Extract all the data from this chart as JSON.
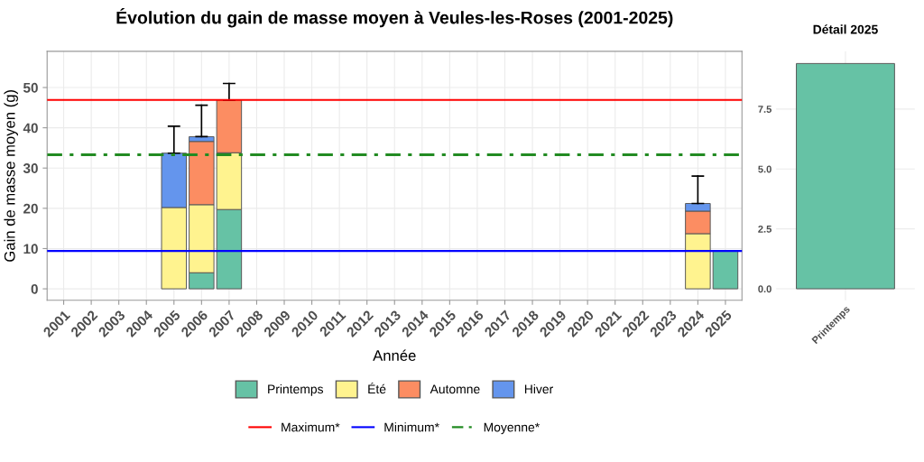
{
  "chart_data": [
    {
      "type": "bar",
      "title": "Évolution du gain de masse moyen à Veules-les-Roses (2001-2025)",
      "xlabel": "Année",
      "ylabel": "Gain de masse moyen (g)",
      "categories": [
        "2001",
        "2002",
        "2003",
        "2004",
        "2005",
        "2006",
        "2007",
        "2008",
        "2009",
        "2010",
        "2011",
        "2012",
        "2013",
        "2014",
        "2015",
        "2016",
        "2017",
        "2018",
        "2019",
        "2020",
        "2021",
        "2022",
        "2023",
        "2024",
        "2025"
      ],
      "stacked": true,
      "ylim": [
        -2.85,
        59
      ],
      "yticks": [
        0,
        10,
        20,
        30,
        40,
        50
      ],
      "grid": true,
      "legend": "bottom",
      "series": [
        {
          "name": "Printemps",
          "color": "#66c2a5",
          "values": [
            null,
            null,
            null,
            null,
            null,
            4.0,
            19.7,
            null,
            null,
            null,
            null,
            null,
            null,
            null,
            null,
            null,
            null,
            null,
            null,
            null,
            null,
            null,
            null,
            null,
            9.4
          ]
        },
        {
          "name": "Été",
          "color": "#fff38f",
          "values": [
            null,
            null,
            null,
            null,
            20.2,
            16.9,
            14.1,
            null,
            null,
            null,
            null,
            null,
            null,
            null,
            null,
            null,
            null,
            null,
            null,
            null,
            null,
            null,
            null,
            13.7,
            null
          ]
        },
        {
          "name": "Automne",
          "color": "#fc8d62",
          "values": [
            null,
            null,
            null,
            null,
            null,
            15.7,
            13.1,
            null,
            null,
            null,
            null,
            null,
            null,
            null,
            null,
            null,
            null,
            null,
            null,
            null,
            null,
            null,
            null,
            5.6,
            null
          ],
          "errors": [
            null,
            null,
            null,
            null,
            null,
            null,
            [
              46.9,
              51.0
            ],
            null,
            null,
            null,
            null,
            null,
            null,
            null,
            null,
            null,
            null,
            null,
            null,
            null,
            null,
            null,
            null,
            null,
            null
          ]
        },
        {
          "name": "Hiver",
          "color": "#6495ed",
          "values": [
            null,
            null,
            null,
            null,
            13.5,
            1.2,
            null,
            null,
            null,
            null,
            null,
            null,
            null,
            null,
            null,
            null,
            null,
            null,
            null,
            null,
            null,
            null,
            null,
            1.9,
            null
          ],
          "errors": [
            null,
            null,
            null,
            null,
            [
              33.7,
              40.4
            ],
            [
              37.8,
              45.6
            ],
            null,
            null,
            null,
            null,
            null,
            null,
            null,
            null,
            null,
            null,
            null,
            null,
            null,
            null,
            null,
            null,
            null,
            [
              21.2,
              28.0
            ],
            null
          ]
        }
      ],
      "ref_lines": [
        {
          "axis": "y",
          "value": 46.9,
          "label": "Maximum*",
          "color": "#ff0000",
          "line_style": "solid"
        },
        {
          "axis": "y",
          "value": 9.4,
          "label": "Minimum*",
          "color": "#0000ff",
          "line_style": "solid"
        },
        {
          "axis": "y",
          "value": 33.3,
          "label": "Moyenne*",
          "color": "#228b22",
          "line_style": "dashdot"
        }
      ]
    },
    {
      "type": "bar",
      "title": "Détail 2025",
      "categories": [
        "Printemps"
      ],
      "values": [
        9.4
      ],
      "color": "#66c2a5",
      "ylim": [
        -0.48,
        9.91
      ],
      "yticks": [
        {
          "value": 0,
          "label": "0.0"
        },
        {
          "value": 2.5,
          "label": "2.5"
        },
        {
          "value": 5,
          "label": "5.0"
        },
        {
          "value": 7.5,
          "label": "7.5"
        }
      ],
      "grid": true
    }
  ]
}
